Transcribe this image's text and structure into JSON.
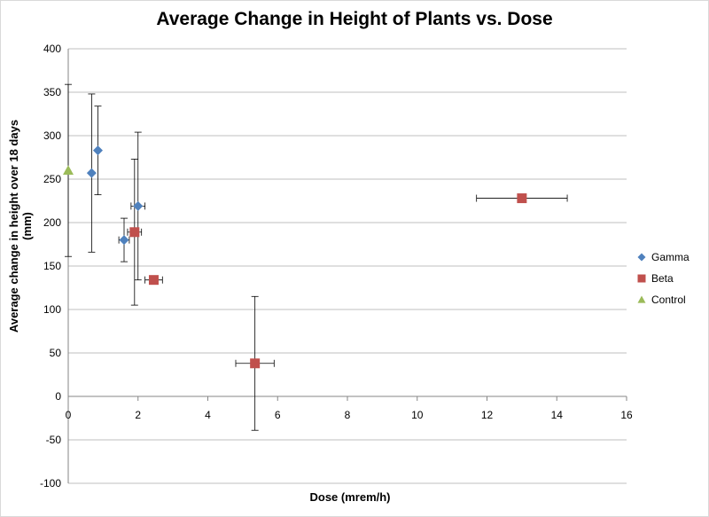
{
  "chart_data": {
    "type": "scatter",
    "title": "Average Change in Height of Plants vs. Dose",
    "xlabel": "Dose (mrem/h)",
    "ylabel": "Average change in height over 18 days (mm)",
    "xlim": [
      0,
      16
    ],
    "ylim": [
      -100,
      400
    ],
    "xticks": [
      0,
      2,
      4,
      6,
      8,
      10,
      12,
      14,
      16
    ],
    "yticks": [
      -100,
      -50,
      0,
      50,
      100,
      150,
      200,
      250,
      300,
      350,
      400
    ],
    "grid": "horizontal",
    "legend_position": "right",
    "series": [
      {
        "name": "Gamma",
        "color": "#4f81bd",
        "marker": "diamond",
        "points": [
          {
            "x": 0.67,
            "y": 257,
            "yerr": 91,
            "xerr": 0
          },
          {
            "x": 0.85,
            "y": 283,
            "yerr": 51,
            "xerr": 0
          },
          {
            "x": 1.6,
            "y": 180,
            "yerr": 25,
            "xerr": 0.15
          },
          {
            "x": 2.0,
            "y": 219,
            "yerr": 85,
            "xerr": 0.2
          }
        ]
      },
      {
        "name": "Beta",
        "color": "#c0504d",
        "marker": "square",
        "points": [
          {
            "x": 1.9,
            "y": 189,
            "yerr": 84,
            "xerr": 0.2
          },
          {
            "x": 2.45,
            "y": 134,
            "yerr": 0,
            "xerr": 0.25
          },
          {
            "x": 5.35,
            "y": 38,
            "yerr": 77,
            "xerr": 0.55
          },
          {
            "x": 13.0,
            "y": 228,
            "yerr": 0,
            "xerr": 1.3
          }
        ]
      },
      {
        "name": "Control",
        "color": "#9bbb59",
        "marker": "triangle",
        "points": [
          {
            "x": 0,
            "y": 260,
            "yerr": 99,
            "xerr": 0
          }
        ]
      }
    ]
  }
}
